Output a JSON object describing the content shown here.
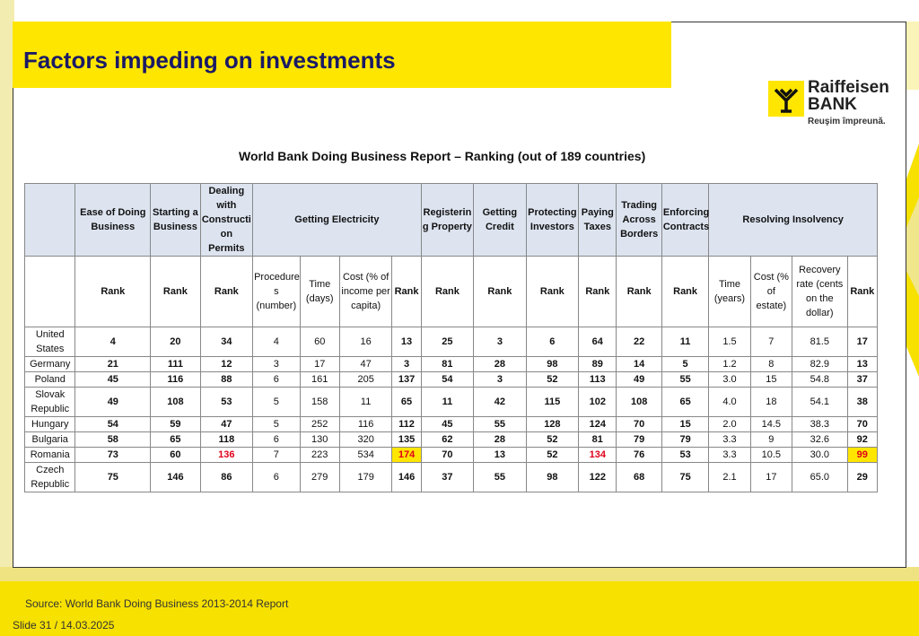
{
  "title": "Factors impeding on investments",
  "logo": {
    "brand_line1": "Raiffeisen",
    "brand_line2": "BANK",
    "slogan": "Reuşim împreună."
  },
  "report_title": "World Bank Doing Business Report – Ranking (out of 189 countries)",
  "columns": {
    "ease": "Ease of Doing Business",
    "starting": "Starting a Business",
    "construction": "Dealing with Constructi on Permits",
    "electricity": "Getting Electricity",
    "property": "Registerin g Property",
    "credit": "Getting Credit",
    "investors": "Protecting Investors",
    "taxes": "Paying Taxes",
    "trading": "Trading Across Borders",
    "contracts": "Enforcing Contracts",
    "insolvency": "Resolving Insolvency"
  },
  "subheaders": {
    "rank": "Rank",
    "procedures": "Procedure s (number)",
    "time_days": "Time (days)",
    "cost_income": "Cost (% of income per capita)",
    "time_years": "Time (years)",
    "cost_estate": "Cost (% of estate)",
    "recovery": "Recovery rate (cents on the dollar)"
  },
  "rows": [
    {
      "country": "United States",
      "v": [
        "4",
        "20",
        "34",
        "4",
        "60",
        "16",
        "13",
        "25",
        "3",
        "6",
        "64",
        "22",
        "11",
        "1.5",
        "7",
        "81.5",
        "17"
      ]
    },
    {
      "country": "Germany",
      "v": [
        "21",
        "111",
        "12",
        "3",
        "17",
        "47",
        "3",
        "81",
        "28",
        "98",
        "89",
        "14",
        "5",
        "1.2",
        "8",
        "82.9",
        "13"
      ]
    },
    {
      "country": "Poland",
      "v": [
        "45",
        "116",
        "88",
        "6",
        "161",
        "205",
        "137",
        "54",
        "3",
        "52",
        "113",
        "49",
        "55",
        "3.0",
        "15",
        "54.8",
        "37"
      ]
    },
    {
      "country": "Slovak Republic",
      "v": [
        "49",
        "108",
        "53",
        "5",
        "158",
        "11",
        "65",
        "11",
        "42",
        "115",
        "102",
        "108",
        "65",
        "4.0",
        "18",
        "54.1",
        "38"
      ]
    },
    {
      "country": "Hungary",
      "v": [
        "54",
        "59",
        "47",
        "5",
        "252",
        "116",
        "112",
        "45",
        "55",
        "128",
        "124",
        "70",
        "15",
        "2.0",
        "14.5",
        "38.3",
        "70"
      ]
    },
    {
      "country": "Bulgaria",
      "v": [
        "58",
        "65",
        "118",
        "6",
        "130",
        "320",
        "135",
        "62",
        "28",
        "52",
        "81",
        "79",
        "79",
        "3.3",
        "9",
        "32.6",
        "92"
      ]
    },
    {
      "country": "Romania",
      "v": [
        "73",
        "60",
        "136",
        "7",
        "223",
        "534",
        "174",
        "70",
        "13",
        "52",
        "134",
        "76",
        "53",
        "3.3",
        "10.5",
        "30.0",
        "99"
      ]
    },
    {
      "country": "Czech Republic",
      "v": [
        "75",
        "146",
        "86",
        "6",
        "279",
        "179",
        "146",
        "37",
        "55",
        "98",
        "122",
        "68",
        "75",
        "2.1",
        "17",
        "65.0",
        "29"
      ]
    }
  ],
  "highlight_color": "#ffe600",
  "highlight_text_color": "#e0001a",
  "source": "Source: World Bank Doing Business 2013-2014 Report",
  "slide_label": "Slide 31 / 14.03.2025"
}
